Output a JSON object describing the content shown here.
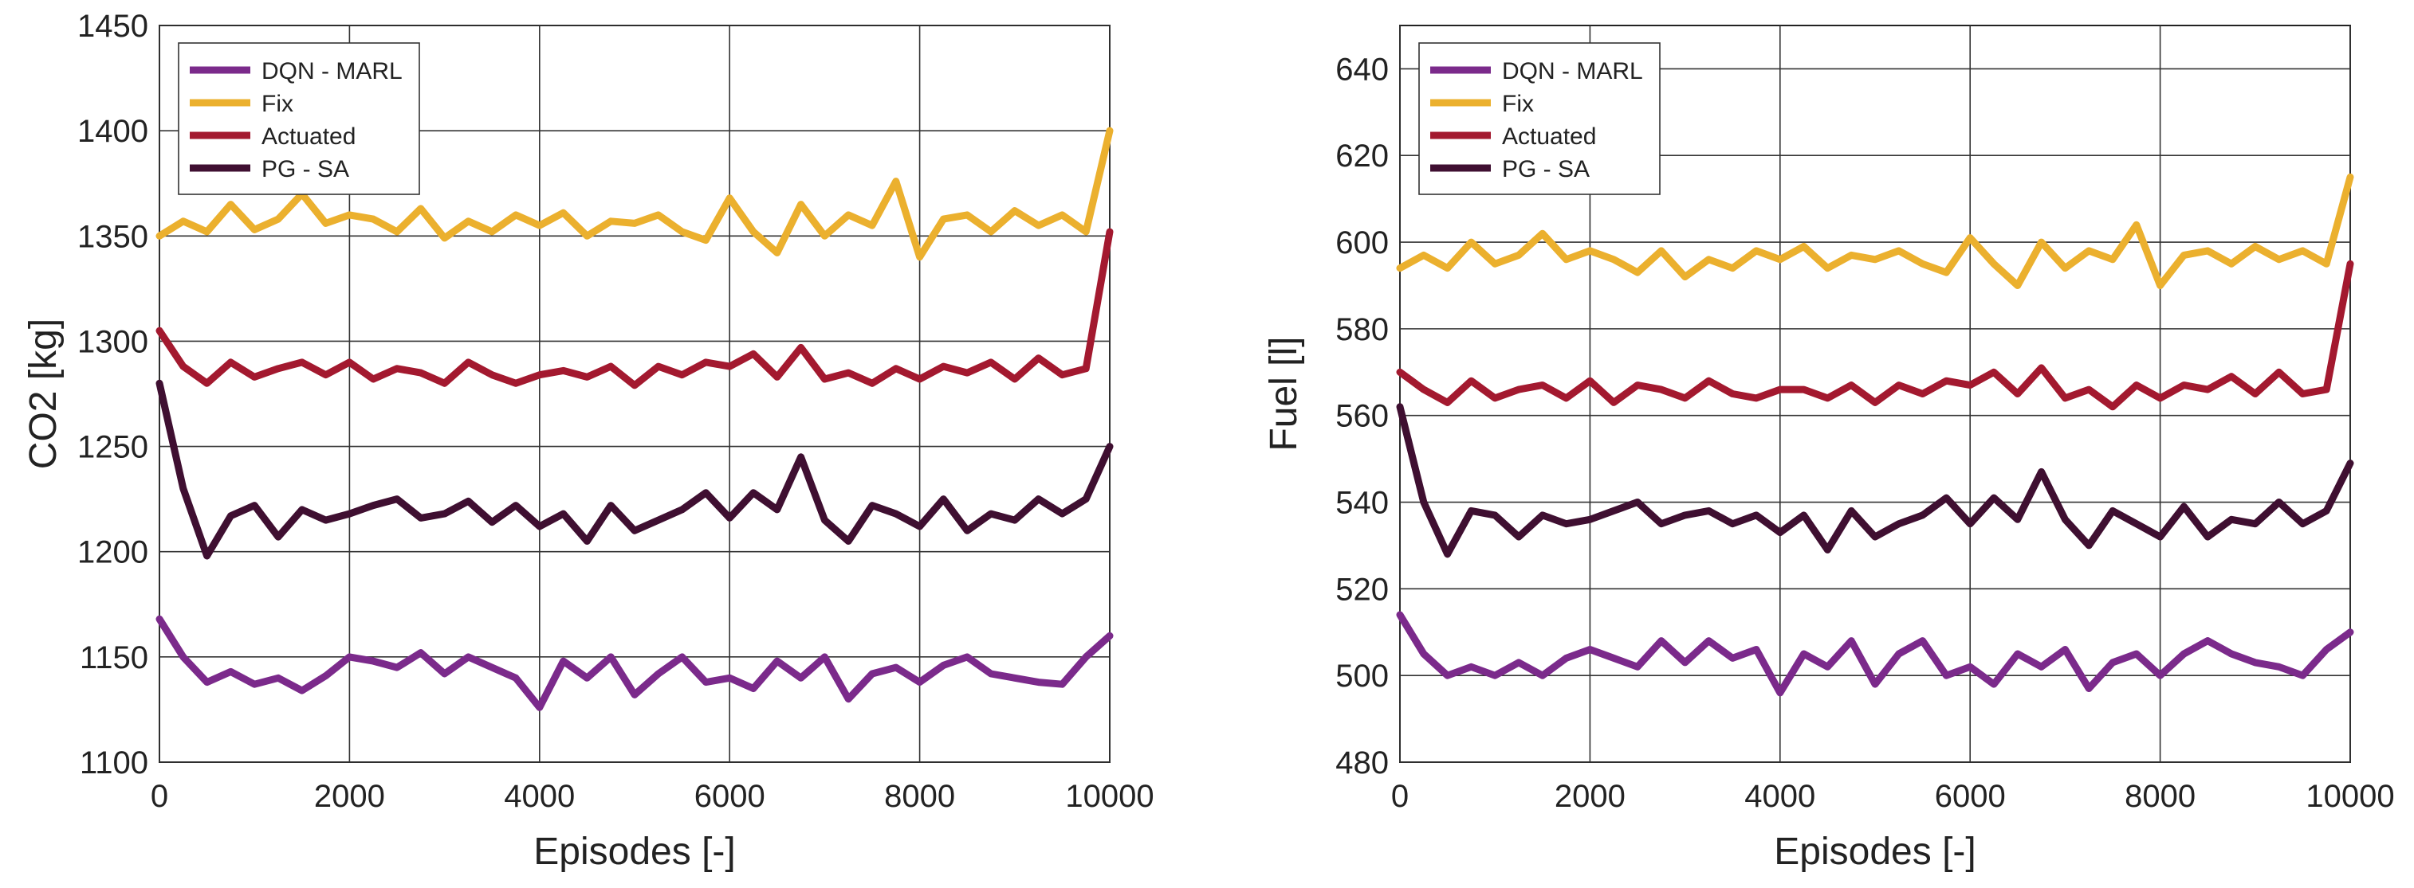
{
  "chart_data": [
    {
      "type": "line",
      "title": "",
      "xlabel": "Episodes [-]",
      "ylabel": "CO2 [kg]",
      "xlim": [
        0,
        10000
      ],
      "ylim": [
        1100,
        1450
      ],
      "xticks": [
        0,
        2000,
        4000,
        6000,
        8000,
        10000
      ],
      "yticks": [
        1100,
        1150,
        1200,
        1250,
        1300,
        1350,
        1400,
        1450
      ],
      "grid": true,
      "legend_position": "top-left",
      "x": [
        0,
        250,
        500,
        750,
        1000,
        1250,
        1500,
        1750,
        2000,
        2250,
        2500,
        2750,
        3000,
        3250,
        3500,
        3750,
        4000,
        4250,
        4500,
        4750,
        5000,
        5250,
        5500,
        5750,
        6000,
        6250,
        6500,
        6750,
        7000,
        7250,
        7500,
        7750,
        8000,
        8250,
        8500,
        8750,
        9000,
        9250,
        9500,
        9750,
        10000
      ],
      "series": [
        {
          "name": "DQN - MARL",
          "color": "#7b2a8b",
          "values": [
            1168,
            1150,
            1138,
            1143,
            1137,
            1140,
            1134,
            1141,
            1150,
            1148,
            1145,
            1152,
            1142,
            1150,
            1145,
            1140,
            1126,
            1148,
            1140,
            1150,
            1132,
            1142,
            1150,
            1138,
            1140,
            1135,
            1148,
            1140,
            1150,
            1130,
            1142,
            1145,
            1138,
            1146,
            1150,
            1142,
            1140,
            1138,
            1137,
            1150,
            1160
          ]
        },
        {
          "name": "Fix",
          "color": "#ebb02e",
          "values": [
            1350,
            1357,
            1352,
            1365,
            1353,
            1358,
            1370,
            1356,
            1360,
            1358,
            1352,
            1363,
            1349,
            1357,
            1352,
            1360,
            1355,
            1361,
            1350,
            1357,
            1356,
            1360,
            1352,
            1348,
            1368,
            1352,
            1342,
            1365,
            1350,
            1360,
            1355,
            1376,
            1340,
            1358,
            1360,
            1352,
            1362,
            1355,
            1360,
            1352,
            1400
          ]
        },
        {
          "name": "Actuated",
          "color": "#a3192f",
          "values": [
            1305,
            1288,
            1280,
            1290,
            1283,
            1287,
            1290,
            1284,
            1290,
            1282,
            1287,
            1285,
            1280,
            1290,
            1284,
            1280,
            1284,
            1286,
            1283,
            1288,
            1279,
            1288,
            1284,
            1290,
            1288,
            1294,
            1283,
            1297,
            1282,
            1285,
            1280,
            1287,
            1282,
            1288,
            1285,
            1290,
            1282,
            1292,
            1284,
            1287,
            1352
          ]
        },
        {
          "name": "PG - SA",
          "color": "#3f0f31",
          "values": [
            1280,
            1230,
            1198,
            1217,
            1222,
            1207,
            1220,
            1215,
            1218,
            1222,
            1225,
            1216,
            1218,
            1224,
            1214,
            1222,
            1212,
            1218,
            1205,
            1222,
            1210,
            1215,
            1220,
            1228,
            1216,
            1228,
            1220,
            1245,
            1215,
            1205,
            1222,
            1218,
            1212,
            1225,
            1210,
            1218,
            1215,
            1225,
            1218,
            1225,
            1250
          ]
        }
      ]
    },
    {
      "type": "line",
      "title": "",
      "xlabel": "Episodes [-]",
      "ylabel": "Fuel [l]",
      "xlim": [
        0,
        10000
      ],
      "ylim": [
        480,
        650
      ],
      "xticks": [
        0,
        2000,
        4000,
        6000,
        8000,
        10000
      ],
      "yticks": [
        480,
        500,
        520,
        540,
        560,
        580,
        600,
        620,
        640
      ],
      "grid": true,
      "legend_position": "top-left",
      "x": [
        0,
        250,
        500,
        750,
        1000,
        1250,
        1500,
        1750,
        2000,
        2250,
        2500,
        2750,
        3000,
        3250,
        3500,
        3750,
        4000,
        4250,
        4500,
        4750,
        5000,
        5250,
        5500,
        5750,
        6000,
        6250,
        6500,
        6750,
        7000,
        7250,
        7500,
        7750,
        8000,
        8250,
        8500,
        8750,
        9000,
        9250,
        9500,
        9750,
        10000
      ],
      "series": [
        {
          "name": "DQN - MARL",
          "color": "#7b2a8b",
          "values": [
            514,
            505,
            500,
            502,
            500,
            503,
            500,
            504,
            506,
            504,
            502,
            508,
            503,
            508,
            504,
            506,
            496,
            505,
            502,
            508,
            498,
            505,
            508,
            500,
            502,
            498,
            505,
            502,
            506,
            497,
            503,
            505,
            500,
            505,
            508,
            505,
            503,
            502,
            500,
            506,
            510
          ]
        },
        {
          "name": "Fix",
          "color": "#ebb02e",
          "values": [
            594,
            597,
            594,
            600,
            595,
            597,
            602,
            596,
            598,
            596,
            593,
            598,
            592,
            596,
            594,
            598,
            596,
            599,
            594,
            597,
            596,
            598,
            595,
            593,
            601,
            595,
            590,
            600,
            594,
            598,
            596,
            604,
            590,
            597,
            598,
            595,
            599,
            596,
            598,
            595,
            615
          ]
        },
        {
          "name": "Actuated",
          "color": "#a3192f",
          "values": [
            570,
            566,
            563,
            568,
            564,
            566,
            567,
            564,
            568,
            563,
            567,
            566,
            564,
            568,
            565,
            564,
            566,
            566,
            564,
            567,
            563,
            567,
            565,
            568,
            567,
            570,
            565,
            571,
            564,
            566,
            562,
            567,
            564,
            567,
            566,
            569,
            565,
            570,
            565,
            566,
            595
          ]
        },
        {
          "name": "PG - SA",
          "color": "#3f0f31",
          "values": [
            562,
            540,
            528,
            538,
            537,
            532,
            537,
            535,
            536,
            538,
            540,
            535,
            537,
            538,
            535,
            537,
            533,
            537,
            529,
            538,
            532,
            535,
            537,
            541,
            535,
            541,
            536,
            547,
            536,
            530,
            538,
            535,
            532,
            539,
            532,
            536,
            535,
            540,
            535,
            538,
            549
          ]
        }
      ]
    }
  ]
}
